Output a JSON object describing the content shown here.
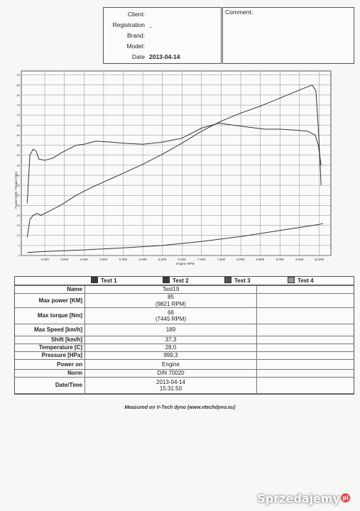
{
  "header": {
    "rows": [
      {
        "label": "Client:",
        "value": ""
      },
      {
        "label": "Registration",
        "value": "_"
      },
      {
        "label": "Brand:",
        "value": ""
      },
      {
        "label": "Model:",
        "value": ""
      },
      {
        "label": "Date",
        "value": "2013-04-14"
      }
    ],
    "comment_label": "Comment:"
  },
  "chart_data": {
    "type": "line",
    "xlabel": "Engine RPM",
    "ylabel": "Power [KM] / Torque [Nm]",
    "xlim": [
      2400,
      10300
    ],
    "ylim": [
      0,
      92
    ],
    "x_ticks": [
      3000,
      3500,
      4000,
      4500,
      5000,
      5500,
      6000,
      6500,
      7000,
      7500,
      8000,
      8500,
      9000,
      9500,
      10000
    ],
    "x_tick_labels": [
      "3.000",
      "3.500",
      "4.000",
      "4.500",
      "5.000",
      "5.500",
      "6.000",
      "6.500",
      "7.000",
      "7.500",
      "8.000",
      "8.500",
      "9.000",
      "9.500",
      "10.000"
    ],
    "y_ticks": [
      0,
      5,
      10,
      15,
      20,
      25,
      30,
      35,
      40,
      45,
      50,
      55,
      60,
      65,
      70,
      75,
      80,
      85,
      90
    ],
    "grid": true,
    "series": [
      {
        "color": "#333333",
        "x": [
          2550,
          2620,
          2700,
          2780,
          2850,
          3000,
          3200,
          3400,
          3600,
          3800,
          4000,
          4300,
          4700,
          5000,
          5500,
          6000,
          6500,
          7000,
          7445,
          7800,
          8200,
          8600,
          9000,
          9400,
          9700,
          9900,
          9980,
          10050
        ],
        "y": [
          26,
          50,
          53,
          52,
          48,
          47.5,
          48.5,
          51,
          53,
          55,
          55.5,
          57,
          56.5,
          56,
          55.5,
          56.5,
          58.5,
          63.5,
          66,
          65,
          64,
          63,
          63,
          62.5,
          62,
          60,
          55,
          45
        ]
      },
      {
        "color": "#333333",
        "x": [
          2550,
          2620,
          2700,
          2800,
          2900,
          3100,
          3400,
          3800,
          4200,
          4600,
          5000,
          5500,
          6000,
          6500,
          7000,
          7500,
          8000,
          8500,
          9000,
          9500,
          9821,
          9920,
          9990,
          10050
        ],
        "y": [
          9,
          18,
          20,
          21,
          20,
          22,
          25,
          30,
          34,
          37.5,
          41,
          45.5,
          50.5,
          56,
          62,
          67,
          71,
          74.5,
          78.5,
          82.5,
          85,
          82,
          60,
          35
        ]
      },
      {
        "color": "#333333",
        "x": [
          2550,
          3000,
          4000,
          5000,
          6000,
          7000,
          8000,
          9000,
          10000,
          10100
        ],
        "y": [
          1.5,
          2,
          2.8,
          3.8,
          5,
          7,
          9.5,
          12.5,
          15.5,
          16
        ]
      }
    ]
  },
  "results": {
    "tests": [
      {
        "label": "Test 1",
        "color": "#3a3a3a"
      },
      {
        "label": "Test 2",
        "color": "#3a3a3a"
      },
      {
        "label": "Test 3",
        "color": "#555555"
      },
      {
        "label": "Test 4",
        "color": "#9a9a9a"
      }
    ],
    "rows": {
      "name": {
        "label": "Name",
        "value": "Test19"
      },
      "max_power": {
        "label": "Max power [KM]",
        "value": "85",
        "sub": "(9821 RPM)"
      },
      "max_torque": {
        "label": "Max torque [Nm]",
        "value": "66",
        "sub": "(7445 RPM)"
      },
      "max_speed": {
        "label": "Max Speed [km/h]",
        "value": "189"
      },
      "shift": {
        "label": "Shift [km/h]",
        "value": "37,3"
      },
      "temperature": {
        "label": "Temperature [C]",
        "value": "28,0"
      },
      "pressure": {
        "label": "Pressure [HPa]",
        "value": "999,3"
      },
      "power_on": {
        "label": "Power on",
        "value": "Engine"
      },
      "norm": {
        "label": "Norm",
        "value": "DIN 70020"
      },
      "datetime": {
        "label": "Date/Time",
        "value": "2013-04-14",
        "sub": "15:31:50"
      }
    }
  },
  "footer": "Measured on V-Tech dyno (www.vtechdyno.eu)",
  "watermark": {
    "text": "Sprzedajemy",
    "badge": "pl"
  }
}
